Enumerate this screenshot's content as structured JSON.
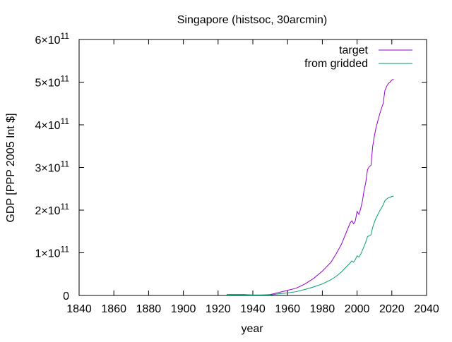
{
  "chart_data": {
    "type": "line",
    "title": "Singapore (histsoc, 30arcmin)",
    "xlabel": "year",
    "ylabel": "GDP [PPP 2005 Int $]",
    "xlim": [
      1840,
      2040
    ],
    "ylim": [
      0,
      600000000000
    ],
    "grid": false,
    "legend_position": "top-right",
    "x_ticks": [
      {
        "value": 1840,
        "label": "1840"
      },
      {
        "value": 1860,
        "label": "1860"
      },
      {
        "value": 1880,
        "label": "1880"
      },
      {
        "value": 1900,
        "label": "1900"
      },
      {
        "value": 1920,
        "label": "1920"
      },
      {
        "value": 1940,
        "label": "1940"
      },
      {
        "value": 1960,
        "label": "1960"
      },
      {
        "value": 1980,
        "label": "1980"
      },
      {
        "value": 2000,
        "label": "2000"
      },
      {
        "value": 2020,
        "label": "2020"
      },
      {
        "value": 2040,
        "label": "2040"
      }
    ],
    "y_ticks": [
      {
        "value": 0,
        "label": "0",
        "mantissa": "",
        "exponent": ""
      },
      {
        "value": 100000000000,
        "label": "1×10^11",
        "mantissa": "1×10",
        "exponent": "11"
      },
      {
        "value": 200000000000,
        "label": "2×10^11",
        "mantissa": "2×10",
        "exponent": "11"
      },
      {
        "value": 300000000000,
        "label": "3×10^11",
        "mantissa": "3×10",
        "exponent": "11"
      },
      {
        "value": 400000000000,
        "label": "4×10^11",
        "mantissa": "4×10",
        "exponent": "11"
      },
      {
        "value": 500000000000,
        "label": "5×10^11",
        "mantissa": "5×10",
        "exponent": "11"
      },
      {
        "value": 600000000000,
        "label": "6×10^11",
        "mantissa": "6×10",
        "exponent": "11"
      }
    ],
    "series": [
      {
        "name": "target",
        "color": "#9400d3",
        "x": [
          1925,
          1930,
          1935,
          1940,
          1945,
          1950,
          1955,
          1960,
          1965,
          1970,
          1975,
          1980,
          1985,
          1988,
          1991,
          1994,
          1996,
          1997,
          1998,
          1999,
          2000,
          2001,
          2002,
          2003,
          2004,
          2005,
          2006,
          2007,
          2008,
          2009,
          2010,
          2011,
          2012,
          2013,
          2014,
          2015,
          2016,
          2017,
          2018,
          2019,
          2020,
          2021
        ],
        "y": [
          2000000000,
          2000000000,
          2000000000,
          1000000000,
          1000000000,
          2000000000,
          7000000000,
          12000000000,
          17000000000,
          27000000000,
          40000000000,
          57000000000,
          78000000000,
          98000000000,
          120000000000,
          150000000000,
          170000000000,
          175000000000,
          168000000000,
          175000000000,
          197000000000,
          190000000000,
          202000000000,
          220000000000,
          245000000000,
          265000000000,
          295000000000,
          302000000000,
          305000000000,
          350000000000,
          375000000000,
          395000000000,
          410000000000,
          425000000000,
          438000000000,
          450000000000,
          480000000000,
          490000000000,
          497000000000,
          500000000000,
          505000000000,
          507000000000
        ]
      },
      {
        "name": "from gridded",
        "color": "#009e73",
        "x": [
          1925,
          1930,
          1935,
          1940,
          1945,
          1950,
          1955,
          1960,
          1965,
          1970,
          1975,
          1980,
          1985,
          1988,
          1991,
          1994,
          1996,
          1997,
          1998,
          1999,
          2000,
          2001,
          2002,
          2003,
          2004,
          2005,
          2006,
          2007,
          2008,
          2009,
          2010,
          2011,
          2012,
          2013,
          2014,
          2015,
          2016,
          2017,
          2018,
          2019,
          2020,
          2021
        ],
        "y": [
          1000000000,
          1000000000,
          1000000000,
          1000000000,
          1000000000,
          1000000000,
          4000000000,
          6000000000,
          9000000000,
          14000000000,
          20000000000,
          27000000000,
          37000000000,
          45000000000,
          55000000000,
          68000000000,
          76000000000,
          81000000000,
          78000000000,
          84000000000,
          93000000000,
          90000000000,
          96000000000,
          105000000000,
          115000000000,
          125000000000,
          138000000000,
          140000000000,
          142000000000,
          160000000000,
          172000000000,
          182000000000,
          190000000000,
          198000000000,
          205000000000,
          212000000000,
          222000000000,
          226000000000,
          229000000000,
          230000000000,
          232000000000,
          233000000000
        ]
      }
    ]
  }
}
